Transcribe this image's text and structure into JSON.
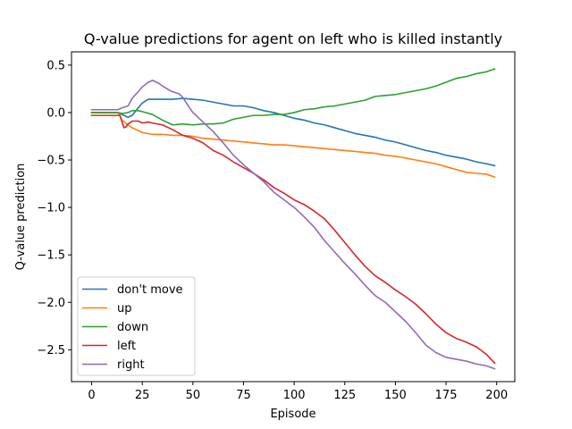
{
  "chart_data": {
    "type": "line",
    "title": "Q-value predictions for agent on left who is killed instantly",
    "xlabel": "Episode",
    "ylabel": "Q-value prediction",
    "xlim": [
      -9.95,
      208.95
    ],
    "ylim": [
      -2.836,
      0.64
    ],
    "xticks": [
      0,
      25,
      50,
      75,
      100,
      125,
      150,
      175,
      200
    ],
    "xtick_labels": [
      "0",
      "25",
      "50",
      "75",
      "100",
      "125",
      "150",
      "175",
      "200"
    ],
    "yticks": [
      -2.5,
      -2.0,
      -1.5,
      -1.0,
      -0.5,
      0.0,
      0.5
    ],
    "ytick_labels": [
      "−2.5",
      "−2.0",
      "−1.5",
      "−1.0",
      "−0.5",
      "0.0",
      "0.5"
    ],
    "grid": false,
    "legend_position": "lower-left",
    "series": [
      {
        "name": "don't move",
        "color": "#1f77b4",
        "x": [
          0,
          13,
          15,
          18,
          20,
          23,
          25,
          28,
          30,
          35,
          40,
          45,
          50,
          55,
          60,
          65,
          70,
          75,
          80,
          85,
          90,
          95,
          100,
          105,
          110,
          115,
          120,
          125,
          130,
          135,
          140,
          145,
          150,
          155,
          160,
          165,
          170,
          175,
          180,
          185,
          190,
          195,
          199
        ],
        "y": [
          0.0,
          0.0,
          -0.02,
          -0.05,
          -0.03,
          0.05,
          0.1,
          0.14,
          0.14,
          0.14,
          0.14,
          0.15,
          0.14,
          0.13,
          0.11,
          0.09,
          0.07,
          0.07,
          0.05,
          0.02,
          0.0,
          -0.03,
          -0.06,
          -0.08,
          -0.11,
          -0.13,
          -0.16,
          -0.19,
          -0.22,
          -0.24,
          -0.26,
          -0.29,
          -0.31,
          -0.34,
          -0.37,
          -0.4,
          -0.42,
          -0.45,
          -0.47,
          -0.49,
          -0.52,
          -0.54,
          -0.56
        ]
      },
      {
        "name": "up",
        "color": "#ff7f0e",
        "x": [
          0,
          13,
          15,
          18,
          20,
          25,
          30,
          35,
          40,
          45,
          50,
          55,
          60,
          65,
          70,
          75,
          80,
          85,
          90,
          95,
          100,
          105,
          110,
          115,
          120,
          125,
          130,
          135,
          140,
          145,
          150,
          155,
          160,
          165,
          170,
          175,
          180,
          185,
          190,
          195,
          199
        ],
        "y": [
          0.0,
          0.0,
          -0.08,
          -0.13,
          -0.16,
          -0.21,
          -0.23,
          -0.23,
          -0.24,
          -0.24,
          -0.25,
          -0.27,
          -0.28,
          -0.29,
          -0.3,
          -0.31,
          -0.32,
          -0.33,
          -0.34,
          -0.34,
          -0.35,
          -0.36,
          -0.37,
          -0.38,
          -0.39,
          -0.4,
          -0.41,
          -0.42,
          -0.43,
          -0.45,
          -0.46,
          -0.48,
          -0.5,
          -0.52,
          -0.54,
          -0.57,
          -0.6,
          -0.63,
          -0.64,
          -0.65,
          -0.68
        ]
      },
      {
        "name": "down",
        "color": "#2ca02c",
        "x": [
          0,
          13,
          15,
          18,
          20,
          23,
          25,
          30,
          35,
          40,
          45,
          50,
          55,
          60,
          65,
          70,
          75,
          80,
          85,
          90,
          95,
          100,
          105,
          110,
          115,
          120,
          125,
          130,
          135,
          140,
          145,
          150,
          155,
          160,
          165,
          170,
          175,
          180,
          185,
          190,
          195,
          199
        ],
        "y": [
          0.0,
          0.0,
          -0.01,
          0.0,
          0.02,
          0.02,
          0.01,
          -0.02,
          -0.08,
          -0.13,
          -0.12,
          -0.13,
          -0.12,
          -0.12,
          -0.11,
          -0.07,
          -0.05,
          -0.03,
          -0.03,
          -0.02,
          -0.02,
          0.0,
          0.03,
          0.04,
          0.06,
          0.07,
          0.09,
          0.11,
          0.13,
          0.17,
          0.18,
          0.19,
          0.21,
          0.23,
          0.25,
          0.28,
          0.32,
          0.36,
          0.38,
          0.41,
          0.43,
          0.46
        ]
      },
      {
        "name": "left",
        "color": "#d62728",
        "x": [
          0,
          14,
          15,
          16,
          17,
          18,
          20,
          23,
          25,
          28,
          30,
          35,
          40,
          45,
          50,
          55,
          60,
          65,
          70,
          75,
          80,
          85,
          90,
          95,
          100,
          105,
          110,
          115,
          120,
          125,
          130,
          135,
          140,
          145,
          150,
          155,
          160,
          165,
          170,
          175,
          180,
          185,
          190,
          195,
          199
        ],
        "y": [
          -0.03,
          -0.03,
          -0.1,
          -0.16,
          -0.15,
          -0.12,
          -0.09,
          -0.09,
          -0.11,
          -0.1,
          -0.11,
          -0.13,
          -0.18,
          -0.24,
          -0.27,
          -0.32,
          -0.4,
          -0.45,
          -0.52,
          -0.58,
          -0.64,
          -0.71,
          -0.79,
          -0.85,
          -0.92,
          -0.97,
          -1.04,
          -1.12,
          -1.24,
          -1.37,
          -1.5,
          -1.62,
          -1.72,
          -1.79,
          -1.87,
          -1.94,
          -2.02,
          -2.12,
          -2.23,
          -2.32,
          -2.38,
          -2.42,
          -2.47,
          -2.55,
          -2.64
        ]
      },
      {
        "name": "right",
        "color": "#9467bd",
        "x": [
          0,
          13,
          15,
          18,
          20,
          23,
          25,
          28,
          30,
          33,
          35,
          38,
          40,
          43,
          45,
          48,
          50,
          55,
          60,
          65,
          70,
          75,
          80,
          85,
          90,
          95,
          100,
          105,
          110,
          115,
          120,
          125,
          130,
          135,
          140,
          145,
          150,
          155,
          160,
          165,
          170,
          175,
          180,
          185,
          190,
          195,
          199
        ],
        "y": [
          0.03,
          0.03,
          0.05,
          0.07,
          0.15,
          0.22,
          0.27,
          0.32,
          0.34,
          0.31,
          0.28,
          0.24,
          0.22,
          0.2,
          0.16,
          0.06,
          0.0,
          -0.1,
          -0.2,
          -0.32,
          -0.45,
          -0.55,
          -0.64,
          -0.73,
          -0.84,
          -0.92,
          -1.0,
          -1.1,
          -1.21,
          -1.35,
          -1.47,
          -1.59,
          -1.7,
          -1.82,
          -1.93,
          -2.0,
          -2.1,
          -2.2,
          -2.32,
          -2.45,
          -2.53,
          -2.58,
          -2.6,
          -2.62,
          -2.65,
          -2.67,
          -2.7
        ]
      }
    ]
  }
}
